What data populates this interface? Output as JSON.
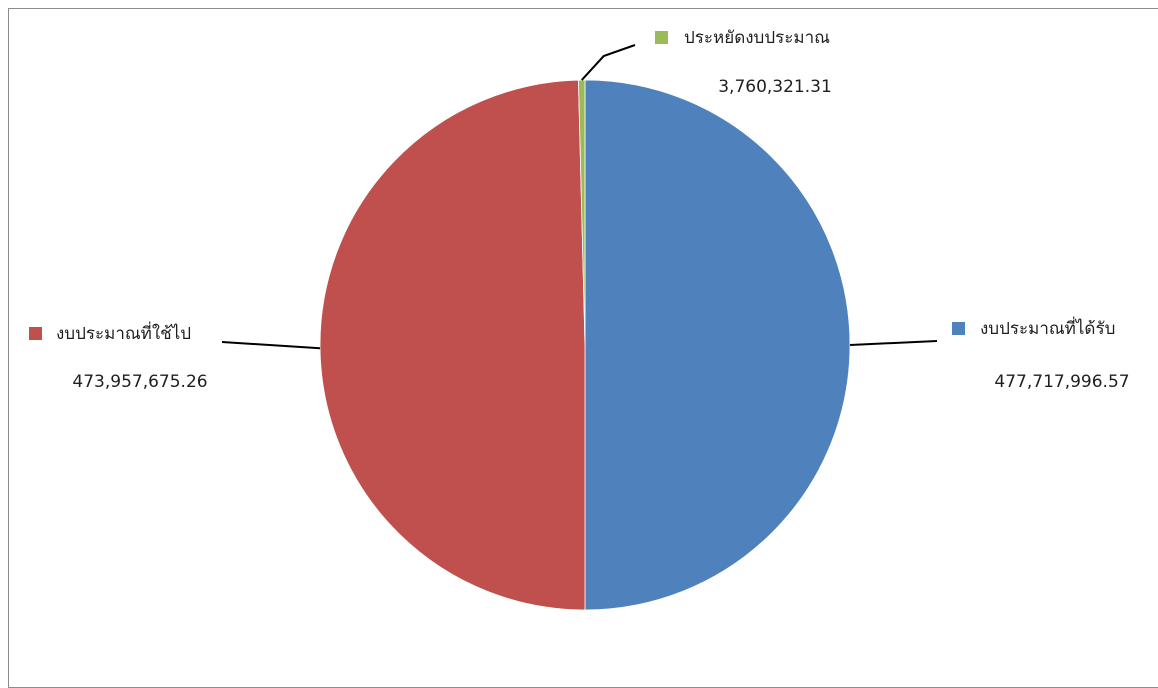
{
  "chart_data": {
    "type": "pie",
    "title": "",
    "slices": [
      {
        "label": "งบประมาณที่ได้รับ",
        "value": 477717996.57,
        "value_label": "477,717,996.57",
        "color": "#4F81BD"
      },
      {
        "label": "งบประมาณที่ใช้ไป",
        "value": 473957675.26,
        "value_label": "473,957,675.26",
        "color": "#C0504D"
      },
      {
        "label": "ประหยัดงบประมาณ",
        "value": 3760321.31,
        "value_label": "3,760,321.31",
        "color": "#9BBB59"
      }
    ],
    "start_angle_deg": 0,
    "direction": "clockwise",
    "data_labels": "outside-with-leader-lines",
    "legend": "none"
  }
}
